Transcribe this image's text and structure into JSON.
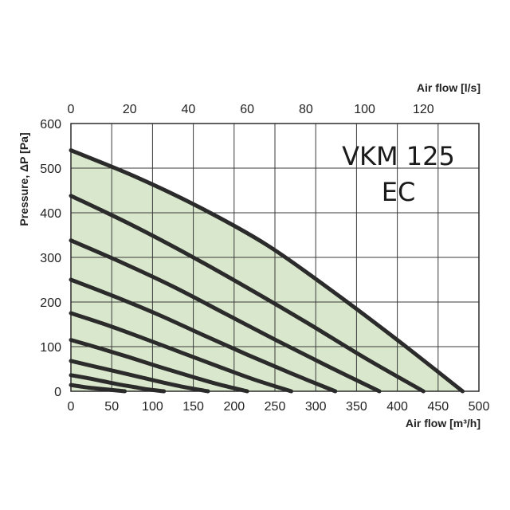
{
  "chart_data": {
    "type": "line",
    "title": "",
    "model_label_line1": "VKM 125",
    "model_label_line2": "EC",
    "xlabel": "Air flow [m³/h]",
    "x2label": "Air flow [l/s]",
    "ylabel": "Pressure, ΔP [Pa]",
    "xlim": [
      0,
      500
    ],
    "ylim": [
      0,
      600
    ],
    "x2lim": [
      0,
      138.9
    ],
    "xticks": [
      0,
      50,
      100,
      150,
      200,
      250,
      300,
      350,
      400,
      450,
      500
    ],
    "yticks": [
      0,
      100,
      200,
      300,
      400,
      500,
      600
    ],
    "x2ticks": [
      0,
      20,
      40,
      60,
      80,
      100,
      120
    ],
    "grid": true,
    "fill_color": "#d9e8cc",
    "curve_color": "#2b2b2b",
    "series": [
      {
        "x": [
          0,
          80,
          160,
          240,
          320,
          400,
          480
        ],
        "y": [
          540,
          480,
          410,
          328,
          225,
          115,
          0
        ]
      },
      {
        "x": [
          0,
          72,
          144,
          216,
          288,
          360,
          432
        ],
        "y": [
          438,
          375,
          306,
          232,
          155,
          75,
          0
        ]
      },
      {
        "x": [
          0,
          63,
          126,
          189,
          252,
          315,
          378
        ],
        "y": [
          338,
          288,
          234,
          174,
          114,
          56,
          0
        ]
      },
      {
        "x": [
          0,
          54,
          108,
          162,
          216,
          270,
          324
        ],
        "y": [
          250,
          212,
          171,
          126,
          82,
          40,
          0
        ]
      },
      {
        "x": [
          0,
          45,
          90,
          135,
          180,
          225,
          270
        ],
        "y": [
          175,
          148,
          118,
          87,
          56,
          26,
          0
        ]
      },
      {
        "x": [
          0,
          36,
          72,
          108,
          144,
          180,
          216
        ],
        "y": [
          115,
          96,
          76,
          55,
          35,
          16,
          0
        ]
      },
      {
        "x": [
          0,
          28,
          56,
          84,
          112,
          140,
          168
        ],
        "y": [
          68,
          56,
          44,
          32,
          20,
          9,
          0
        ]
      },
      {
        "x": [
          0,
          19,
          38,
          57,
          76,
          95,
          114
        ],
        "y": [
          36,
          30,
          23,
          16,
          10,
          4,
          0
        ]
      },
      {
        "x": [
          0,
          11,
          22,
          33,
          44,
          55,
          66
        ],
        "y": [
          14,
          11,
          8,
          6,
          4,
          2,
          0
        ]
      }
    ]
  }
}
